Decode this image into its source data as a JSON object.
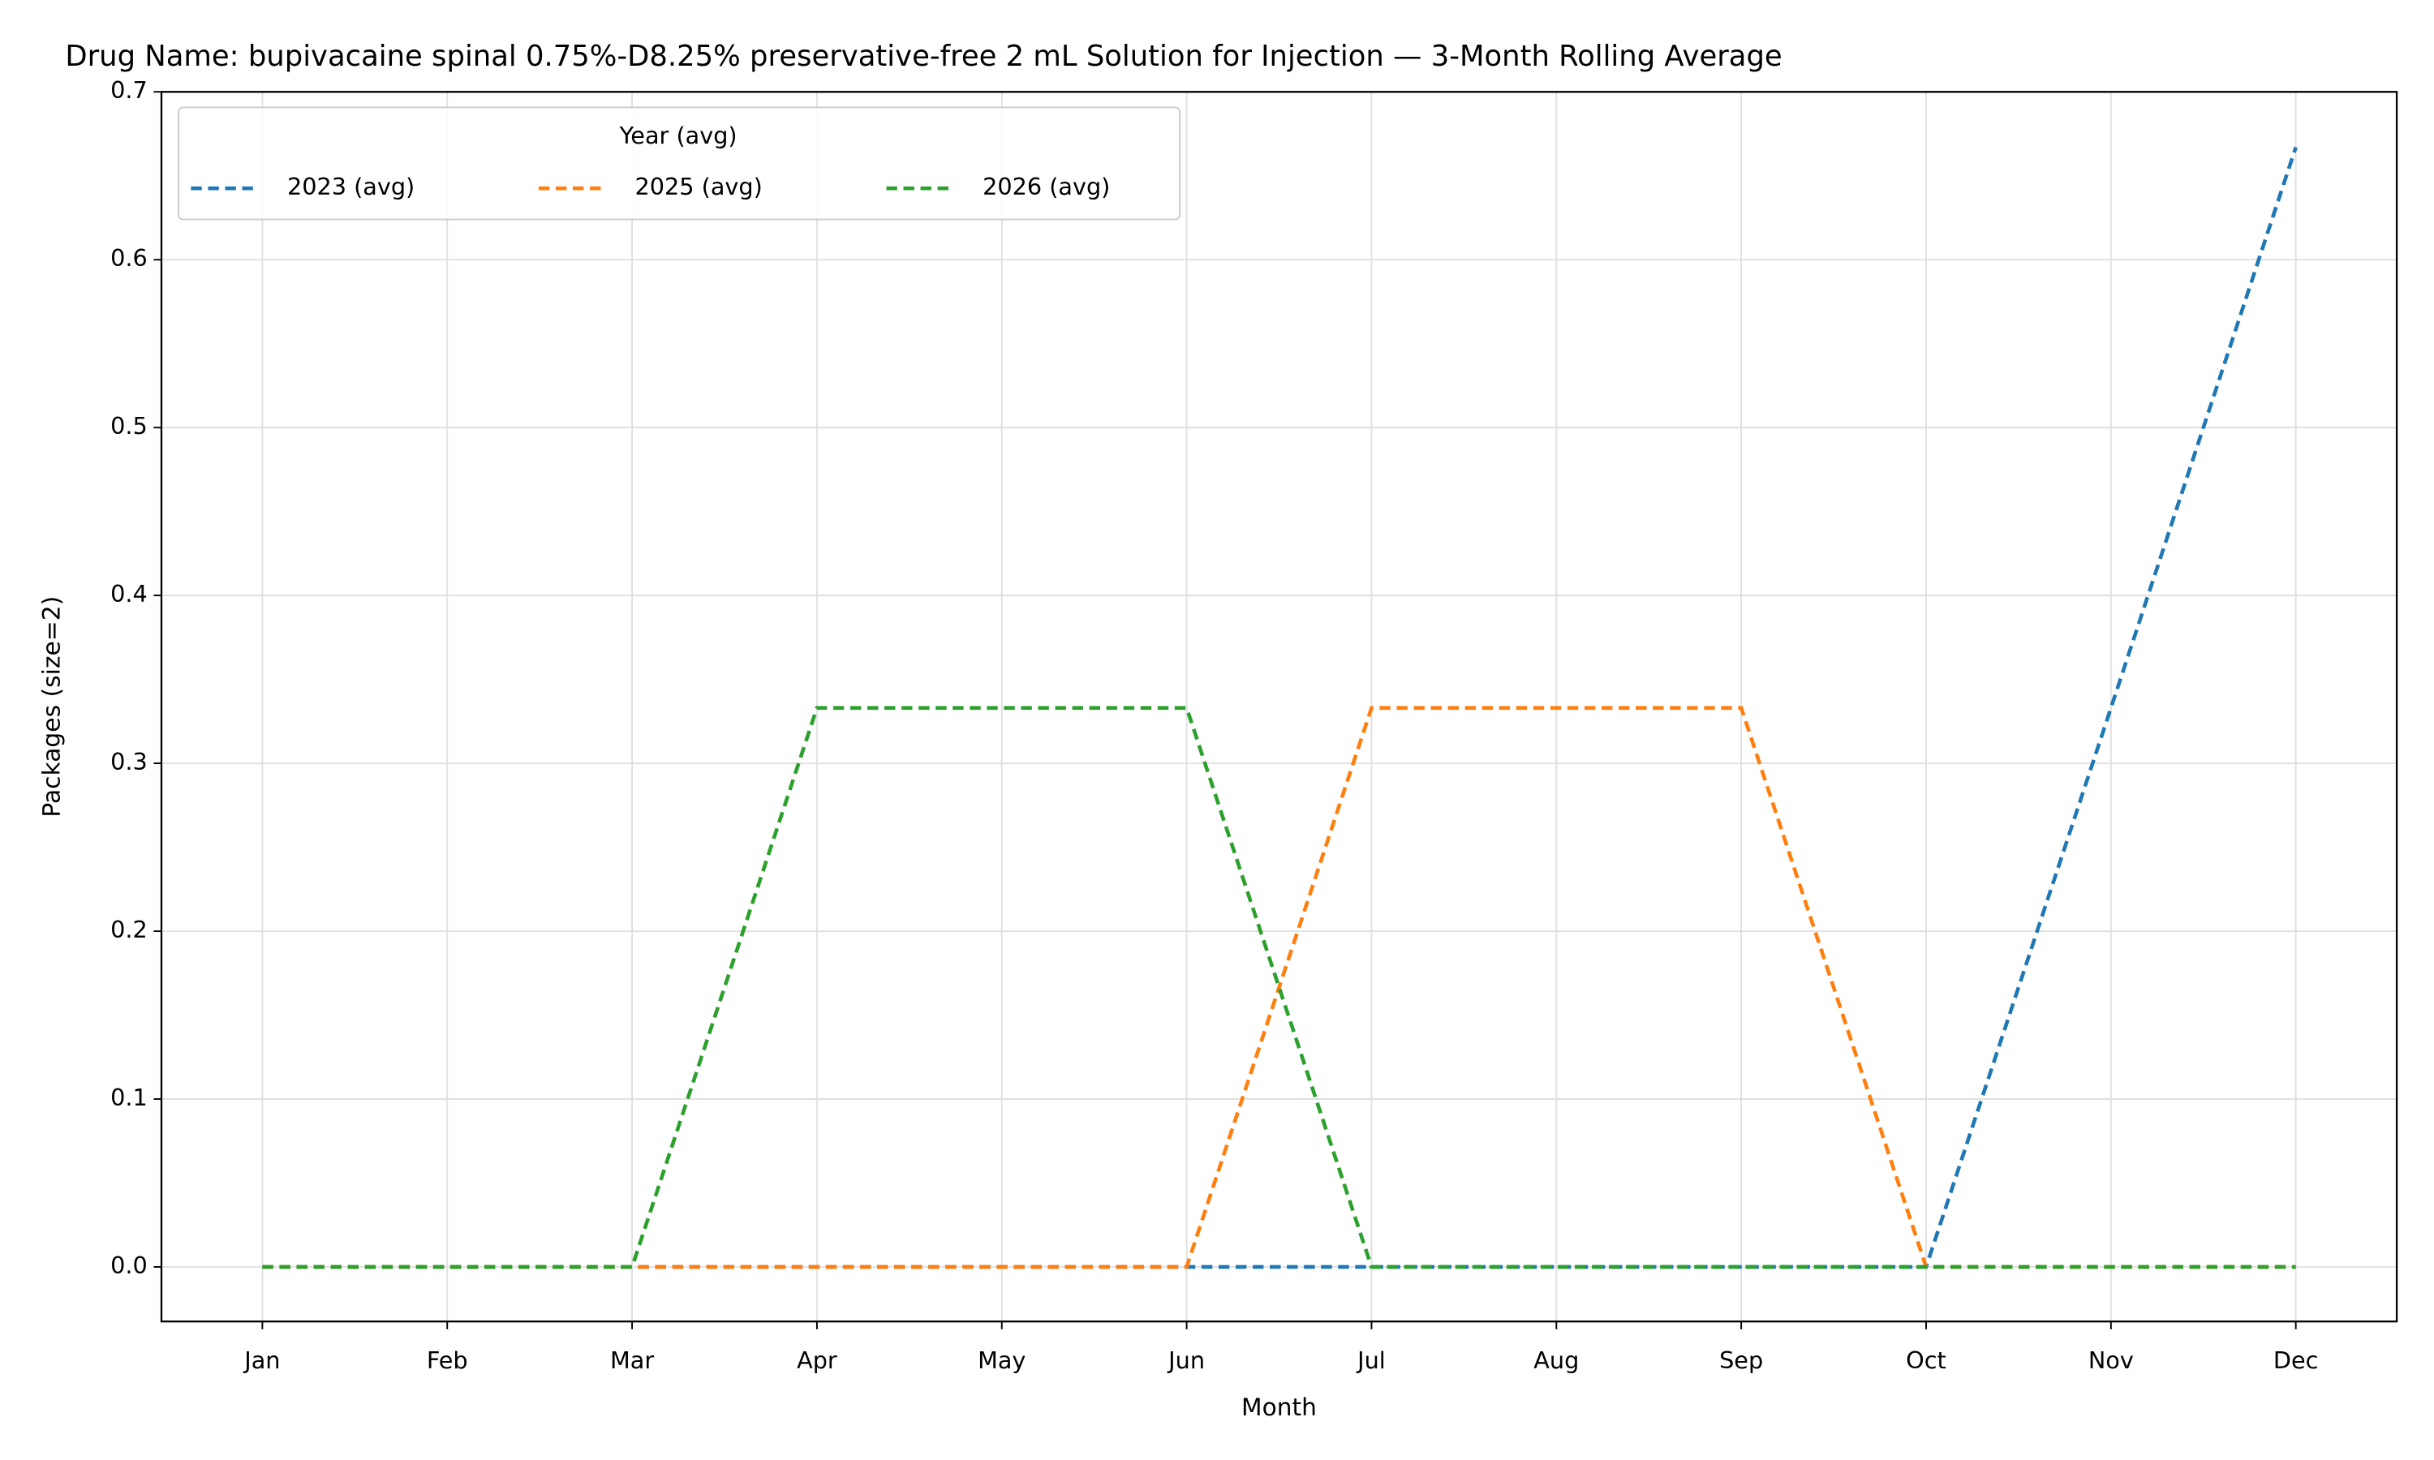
{
  "chart_data": {
    "type": "line",
    "title": "Drug Name: bupivacaine spinal 0.75%-D8.25% preservative-free 2 mL Solution for Injection — 3-Month Rolling Average",
    "x_label": "Month",
    "y_label": "Packages (size=2)",
    "categories": [
      "Jan",
      "Feb",
      "Mar",
      "Apr",
      "May",
      "Jun",
      "Jul",
      "Aug",
      "Sep",
      "Oct",
      "Nov",
      "Dec"
    ],
    "series": [
      {
        "name": "2023 (avg)",
        "color": "#1f77b4",
        "values": [
          0,
          0,
          0,
          0,
          0,
          0,
          0,
          0,
          0,
          0,
          0.333,
          0.667
        ]
      },
      {
        "name": "2025 (avg)",
        "color": "#ff7f0e",
        "values": [
          0,
          0,
          0,
          0,
          0,
          0,
          0.333,
          0.333,
          0.333,
          0,
          0,
          0
        ]
      },
      {
        "name": "2026 (avg)",
        "color": "#2ca02c",
        "values": [
          0,
          0,
          0,
          0.333,
          0.333,
          0.333,
          0,
          0,
          0,
          0,
          0,
          0
        ]
      }
    ],
    "ylim": [
      -0.0325,
      0.7
    ],
    "yticks": [
      {
        "value": 0,
        "label": "0.0"
      },
      0.1,
      0.2,
      0.3,
      0.4,
      0.5,
      0.6,
      0.7
    ],
    "grid": true,
    "legend_title": "Year (avg)",
    "legend_position": "upper left",
    "line_style": "dashed"
  }
}
